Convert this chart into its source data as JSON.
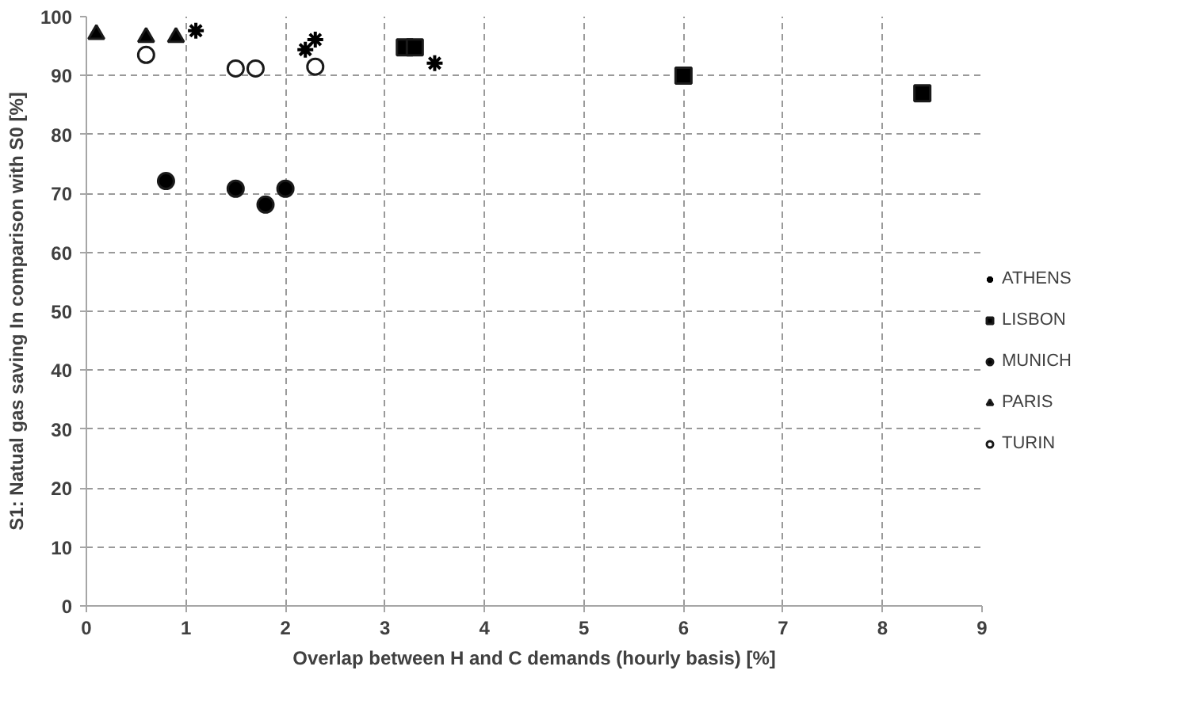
{
  "chart_data": {
    "type": "scatter",
    "xlabel": "Overlap between H and C demands (hourly basis) [%]",
    "ylabel": "S1: Natual gas saving In comparison with S0 [%]",
    "xlim": [
      0,
      9
    ],
    "xticks": [
      0,
      1,
      2,
      3,
      4,
      5,
      6,
      7,
      8,
      9
    ],
    "ylim": [
      0,
      100
    ],
    "yticks": [
      0,
      10,
      20,
      30,
      40,
      50,
      60,
      70,
      80,
      90,
      100
    ],
    "grid": true,
    "legend": "right",
    "series": [
      {
        "name": "ATHENS",
        "color": "#000000",
        "marker": "cross",
        "x": [
          1.1,
          2.2,
          2.3,
          3.5
        ],
        "values": [
          97.6,
          94.4,
          96.1,
          92.1
        ]
      },
      {
        "name": "LISBON",
        "color": "#000000",
        "marker": "square",
        "x": [
          3.2,
          3.3,
          6.0,
          8.4
        ],
        "values": [
          94.8,
          94.8,
          90.0,
          87.0
        ]
      },
      {
        "name": "MUNICH",
        "color": "#000000",
        "marker": "circle",
        "x": [
          0.8,
          1.5,
          1.8,
          2.0
        ],
        "values": [
          72.1,
          70.8,
          68.1,
          70.8
        ]
      },
      {
        "name": "PARIS",
        "color": "#000000",
        "marker": "triangle",
        "x": [
          0.1,
          0.6,
          0.9
        ],
        "values": [
          97.0,
          96.5,
          96.5
        ]
      },
      {
        "name": "TURIN",
        "color": "#ffffff",
        "marker": "circle",
        "x": [
          0.6,
          1.5,
          1.7,
          2.3
        ],
        "values": [
          93.5,
          91.2,
          91.2,
          91.5
        ]
      }
    ]
  }
}
